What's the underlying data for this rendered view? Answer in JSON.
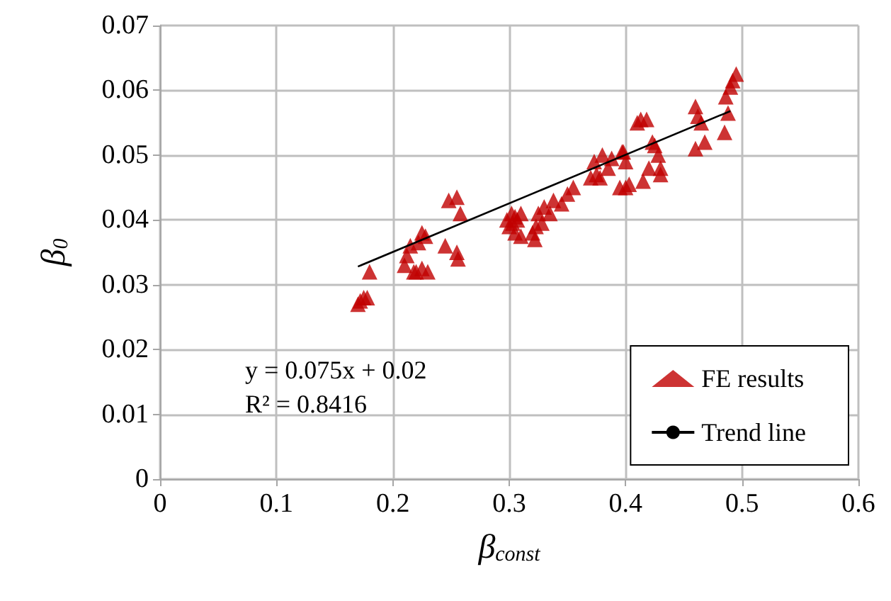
{
  "chart_data": {
    "type": "scatter",
    "xlabel": "β$_{const}$",
    "ylabel": "β$_{0}$",
    "xlim": [
      0,
      0.6
    ],
    "xticks": [
      0,
      0.1,
      0.2,
      0.3,
      0.4,
      0.5,
      0.6
    ],
    "ylim": [
      0,
      0.07
    ],
    "yticks": [
      0,
      0.01,
      0.02,
      0.03,
      0.04,
      0.05,
      0.06,
      0.07
    ],
    "grid": true,
    "legend": "bottom right",
    "marker": "triangle",
    "annotations": [
      "y = 0.075x + 0.02",
      "R² = 0.8416"
    ],
    "series": [
      {
        "name": "FE results",
        "color": "#c00000",
        "x": [
          0.17,
          0.172,
          0.175,
          0.178,
          0.18,
          0.21,
          0.212,
          0.215,
          0.218,
          0.22,
          0.222,
          0.225,
          0.228,
          0.225,
          0.23,
          0.245,
          0.248,
          0.255,
          0.255,
          0.256,
          0.258,
          0.298,
          0.3,
          0.302,
          0.303,
          0.305,
          0.305,
          0.307,
          0.31,
          0.31,
          0.32,
          0.322,
          0.323,
          0.325,
          0.328,
          0.33,
          0.335,
          0.338,
          0.345,
          0.35,
          0.355,
          0.37,
          0.373,
          0.375,
          0.378,
          0.38,
          0.385,
          0.388,
          0.395,
          0.397,
          0.4,
          0.4,
          0.403,
          0.398,
          0.41,
          0.413,
          0.418,
          0.415,
          0.42,
          0.423,
          0.425,
          0.428,
          0.43,
          0.43,
          0.46,
          0.462,
          0.465,
          0.46,
          0.468,
          0.485,
          0.488,
          0.486,
          0.49,
          0.492,
          0.495
        ],
        "values": [
          0.027,
          0.0275,
          0.028,
          0.028,
          0.032,
          0.033,
          0.0345,
          0.036,
          0.032,
          0.032,
          0.0365,
          0.038,
          0.0375,
          0.0325,
          0.032,
          0.036,
          0.043,
          0.0435,
          0.035,
          0.034,
          0.041,
          0.04,
          0.039,
          0.041,
          0.0395,
          0.0405,
          0.038,
          0.04,
          0.041,
          0.0375,
          0.038,
          0.037,
          0.039,
          0.041,
          0.0395,
          0.042,
          0.041,
          0.043,
          0.0425,
          0.044,
          0.045,
          0.0465,
          0.049,
          0.047,
          0.0465,
          0.05,
          0.048,
          0.0495,
          0.045,
          0.0505,
          0.049,
          0.045,
          0.0455,
          0.0505,
          0.055,
          0.0555,
          0.0555,
          0.046,
          0.048,
          0.052,
          0.0515,
          0.05,
          0.048,
          0.047,
          0.0575,
          0.056,
          0.055,
          0.051,
          0.052,
          0.0535,
          0.0565,
          0.059,
          0.0605,
          0.0615,
          0.0625
        ]
      },
      {
        "name": "Trend line",
        "type": "line",
        "color": "#000000",
        "marker": "none",
        "x": [
          0.17,
          0.49
        ],
        "values": [
          0.0328,
          0.0568
        ]
      }
    ]
  }
}
